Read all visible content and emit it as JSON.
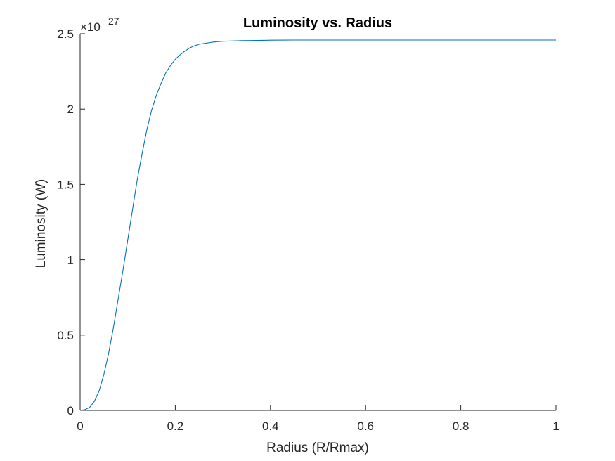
{
  "chart_data": {
    "type": "line",
    "title": "Luminosity vs. Radius",
    "xlabel": "Radius (R/Rmax)",
    "ylabel": "Luminosity (W)",
    "xlim": [
      0,
      1
    ],
    "ylim": [
      0,
      2.5
    ],
    "x_ticks": [
      "0",
      "0.2",
      "0.4",
      "0.6",
      "0.8",
      "1"
    ],
    "y_ticks": [
      "0",
      "0.5",
      "1",
      "1.5",
      "2",
      "2.5"
    ],
    "y_exponent_base": "×10",
    "y_exponent_power": "27",
    "grid": false,
    "line_color": "#0072BD",
    "series": [
      {
        "x": [
          0,
          0.01,
          0.02,
          0.03,
          0.04,
          0.05,
          0.06,
          0.07,
          0.08,
          0.09,
          0.1,
          0.11,
          0.12,
          0.13,
          0.14,
          0.15,
          0.16,
          0.17,
          0.18,
          0.19,
          0.2,
          0.21,
          0.22,
          0.23,
          0.24,
          0.25,
          0.26,
          0.27,
          0.28,
          0.29,
          0.3,
          0.32,
          0.34,
          0.36,
          0.38,
          0.4,
          0.45,
          0.5,
          0.6,
          0.7,
          0.8,
          0.9,
          1.0
        ],
        "y": [
          0,
          0.005,
          0.02,
          0.06,
          0.13,
          0.24,
          0.38,
          0.55,
          0.74,
          0.93,
          1.13,
          1.33,
          1.53,
          1.7,
          1.86,
          1.99,
          2.09,
          2.17,
          2.24,
          2.29,
          2.33,
          2.36,
          2.385,
          2.405,
          2.42,
          2.43,
          2.435,
          2.44,
          2.445,
          2.448,
          2.45,
          2.452,
          2.454,
          2.455,
          2.456,
          2.457,
          2.458,
          2.458,
          2.458,
          2.458,
          2.458,
          2.458,
          2.458
        ]
      }
    ]
  }
}
